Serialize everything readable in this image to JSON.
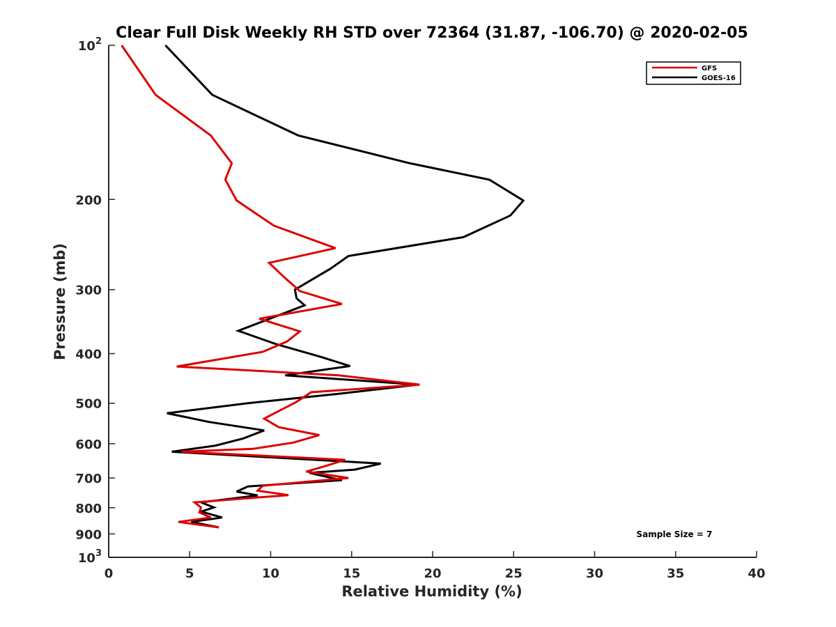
{
  "chart_data": {
    "type": "line",
    "title": "Clear Full Disk Weekly RH STD over 72364 (31.87, -106.70) @ 2020-02-05",
    "xlabel": "Relative Humidity (%)",
    "ylabel": "Pressure (mb)",
    "xlim": [
      0,
      40
    ],
    "ylim": [
      100,
      1000
    ],
    "y_scale": "log",
    "y_reversed": true,
    "x_ticks": [
      "0",
      "5",
      "10",
      "15",
      "20",
      "25",
      "30",
      "35",
      "40"
    ],
    "y_ticks": [
      {
        "value": 100,
        "base": "10",
        "exp": "2"
      },
      {
        "value": 200,
        "label": "200"
      },
      {
        "value": 300,
        "label": "300"
      },
      {
        "value": 400,
        "label": "400"
      },
      {
        "value": 500,
        "label": "500"
      },
      {
        "value": 600,
        "label": "600"
      },
      {
        "value": 700,
        "label": "700"
      },
      {
        "value": 800,
        "label": "800"
      },
      {
        "value": 900,
        "label": "900"
      },
      {
        "value": 1000,
        "base": "10",
        "exp": "3"
      }
    ],
    "legend_position": "top-right",
    "annotation": "Sample Size = 7",
    "series": [
      {
        "name": "GFS",
        "color": "#dd0000",
        "points": [
          [
            0.8,
            100
          ],
          [
            2.9,
            125
          ],
          [
            6.3,
            150
          ],
          [
            7.6,
            170
          ],
          [
            7.2,
            183
          ],
          [
            7.9,
            201
          ],
          [
            10.2,
            225
          ],
          [
            14.0,
            249
          ],
          [
            9.9,
            266
          ],
          [
            10.9,
            285
          ],
          [
            11.8,
            302
          ],
          [
            14.4,
            320
          ],
          [
            9.3,
            342
          ],
          [
            11.8,
            362
          ],
          [
            11.0,
            379
          ],
          [
            9.5,
            397
          ],
          [
            4.2,
            424
          ],
          [
            14.2,
            441
          ],
          [
            19.2,
            460
          ],
          [
            12.5,
            476
          ],
          [
            11.6,
            497
          ],
          [
            10.6,
            516
          ],
          [
            9.6,
            536
          ],
          [
            10.5,
            557
          ],
          [
            13.0,
            577
          ],
          [
            11.4,
            597
          ],
          [
            8.9,
            614
          ],
          [
            4.5,
            622
          ],
          [
            14.6,
            645
          ],
          [
            13.4,
            663
          ],
          [
            12.2,
            680
          ],
          [
            14.8,
            700
          ],
          [
            9.5,
            725
          ],
          [
            9.2,
            741
          ],
          [
            11.1,
            756
          ],
          [
            5.3,
            781
          ],
          [
            5.7,
            799
          ],
          [
            5.6,
            817
          ],
          [
            6.3,
            836
          ],
          [
            4.3,
            853
          ],
          [
            6.8,
            874
          ]
        ]
      },
      {
        "name": "GOES-16",
        "color": "#000000",
        "points": [
          [
            3.5,
            100
          ],
          [
            6.4,
            125
          ],
          [
            11.7,
            150
          ],
          [
            18.6,
            170
          ],
          [
            23.5,
            183
          ],
          [
            25.6,
            201
          ],
          [
            24.8,
            215
          ],
          [
            21.9,
            237
          ],
          [
            14.8,
            258
          ],
          [
            13.7,
            273
          ],
          [
            11.5,
            300
          ],
          [
            11.6,
            312
          ],
          [
            12.1,
            322
          ],
          [
            8.0,
            361
          ],
          [
            10.3,
            383
          ],
          [
            13.1,
            406
          ],
          [
            14.9,
            423
          ],
          [
            10.9,
            441
          ],
          [
            19.1,
            460
          ],
          [
            14.3,
            479
          ],
          [
            8.6,
            500
          ],
          [
            3.6,
            523
          ],
          [
            6.2,
            544
          ],
          [
            9.6,
            565
          ],
          [
            8.3,
            586
          ],
          [
            6.6,
            605
          ],
          [
            3.9,
            622
          ],
          [
            16.8,
            656
          ],
          [
            15.2,
            674
          ],
          [
            12.4,
            684
          ],
          [
            13.0,
            691
          ],
          [
            14.4,
            707
          ],
          [
            8.6,
            727
          ],
          [
            7.9,
            744
          ],
          [
            9.2,
            757
          ],
          [
            5.7,
            781
          ],
          [
            6.5,
            799
          ],
          [
            5.7,
            814
          ],
          [
            7.0,
            836
          ],
          [
            5.1,
            853
          ],
          [
            6.8,
            874
          ]
        ]
      }
    ]
  }
}
